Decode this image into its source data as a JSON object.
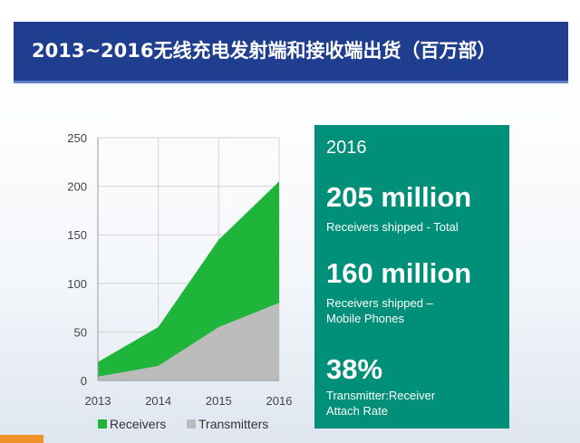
{
  "header": {
    "title": "2013~2016无线充电发射端和接收端出货（百万部）"
  },
  "chart_data": {
    "type": "area",
    "stacked": false,
    "x": [
      "2013",
      "2014",
      "2015",
      "2016"
    ],
    "series": [
      {
        "name": "Receivers",
        "values": [
          19,
          55,
          145,
          205
        ],
        "color": "#1fb53a"
      },
      {
        "name": "Transmitters",
        "values": [
          4,
          15,
          55,
          80
        ],
        "color": "#bcbcbc"
      }
    ],
    "yticks": [
      0,
      50,
      100,
      150,
      200,
      250
    ],
    "ylim": [
      0,
      250
    ],
    "grid": true,
    "legend": "bottom"
  },
  "panel": {
    "year": "2016",
    "stat1_value": "205 million",
    "stat1_label": "Receivers shipped - Total",
    "stat2_value": "160 million",
    "stat2_label_line1": "Receivers shipped –",
    "stat2_label_line2": "Mobile Phones",
    "stat3_value": "38%",
    "stat3_label_line1": "Transmitter:Receiver",
    "stat3_label_line2": "Attach Rate"
  }
}
